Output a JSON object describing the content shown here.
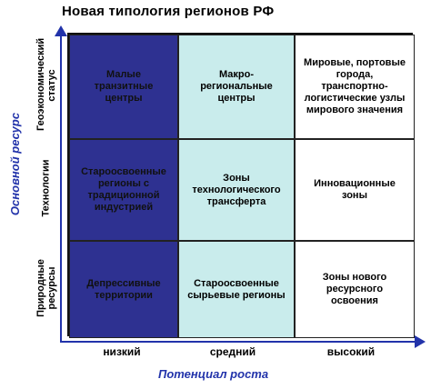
{
  "title": "Новая типология регионов РФ",
  "y_axis_title": "Основной ресурс",
  "x_axis_title": "Потенциал роста",
  "row_labels": [
    "Геоэкономический статус",
    "Технологии",
    "Природные ресурсы"
  ],
  "col_labels": [
    "низкий",
    "средний",
    "высокий"
  ],
  "cells": [
    [
      "Малые транзитные центры",
      "Макро-региональные центры",
      "Мировые, портовые города, транспортно-логистические узлы мирового значения"
    ],
    [
      "Староосвоенные регионы с традиционной индустрией",
      "Зоны технологического трансферта",
      "Инновационные зоны"
    ],
    [
      "Депрессивные территории",
      "Староосвоенные сырьевые регионы",
      "Зоны нового ресурсного освоения"
    ]
  ],
  "colors": {
    "low_column": "#2e3191",
    "mid_column": "#c9ecec",
    "high_column": "#ffffff",
    "axis": "#2233aa"
  }
}
